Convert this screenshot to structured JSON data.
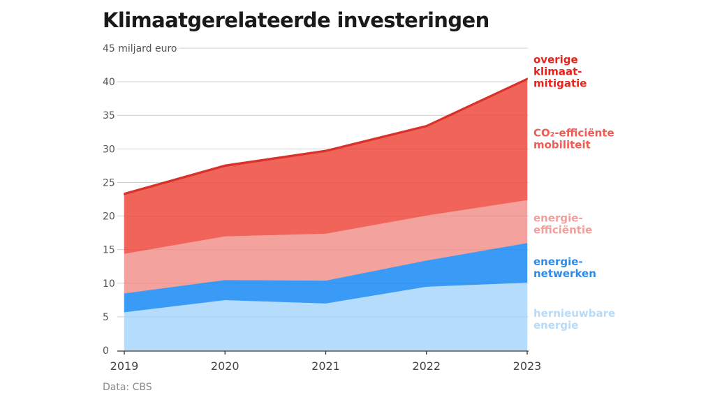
{
  "title": "Klimaatgerelateerde investeringen",
  "source": "Data: CBS",
  "chart_data": {
    "type": "area",
    "stacked": true,
    "title": "Klimaatgerelateerde investeringen",
    "ylabel": "miljard euro",
    "xlabel": "",
    "x": [
      "2019",
      "2020",
      "2021",
      "2022",
      "2023"
    ],
    "ylim": [
      0,
      45
    ],
    "yticks": [
      0,
      5,
      10,
      15,
      20,
      25,
      30,
      35,
      40,
      45
    ],
    "grid": true,
    "legend": "right-inline",
    "series": [
      {
        "name": "hernieuwbare energie",
        "label_lines": [
          "hernieuwbare",
          "energie"
        ],
        "color": "#B6DCFB",
        "label_color": "#B8DBF8",
        "values": [
          5.7,
          7.5,
          7.0,
          9.5,
          10.1
        ]
      },
      {
        "name": "energie-netwerken",
        "label_lines": [
          "energie-",
          "netwerken"
        ],
        "color": "#3A9BF7",
        "label_color": "#2D8BEA",
        "values": [
          2.8,
          3.0,
          3.4,
          3.9,
          5.9
        ]
      },
      {
        "name": "energie-efficiëntie",
        "label_lines": [
          "energie-",
          "efficiëntie"
        ],
        "color": "#F4A29D",
        "label_color": "#F2A09B",
        "values": [
          5.9,
          6.5,
          7.0,
          6.7,
          6.4
        ]
      },
      {
        "name": "CO₂-efficiënte mobiliteit",
        "label_lines": [
          "CO₂-efficiënte",
          "mobiliteit"
        ],
        "color": "#F0645A",
        "label_color": "#EE5D55",
        "values": [
          8.8,
          10.4,
          12.2,
          13.2,
          17.9
        ]
      },
      {
        "name": "overige klimaatmitigatie",
        "label_lines": [
          "overige",
          "klimaat-",
          "mitigatie"
        ],
        "color": "#D8332B",
        "label_color": "#E5231B",
        "values": [
          0.2,
          0.2,
          0.2,
          0.2,
          0.2
        ]
      }
    ],
    "label_anchor_values": [
      4.6,
      12.3,
      18.8,
      31.5,
      41.5
    ]
  }
}
